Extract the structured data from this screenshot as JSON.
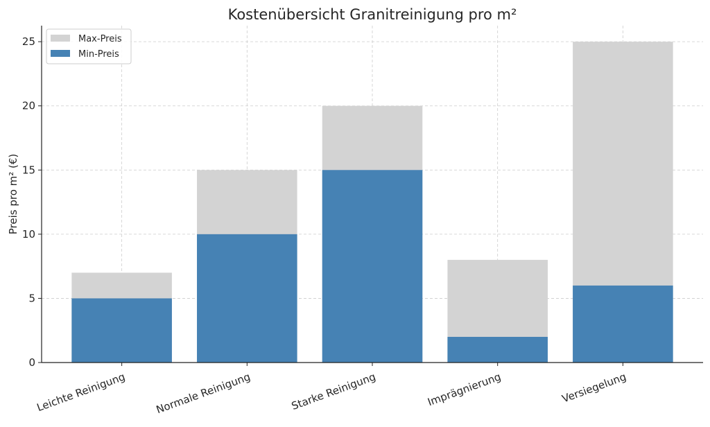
{
  "chart_data": {
    "type": "bar",
    "title": "Kostenübersicht Granitreinigung pro m²",
    "xlabel": "",
    "ylabel": "Preis pro m² (€)",
    "categories": [
      "Leichte Reinigung",
      "Normale Reinigung",
      "Starke Reinigung",
      "Imprägnierung",
      "Versiegelung"
    ],
    "series": [
      {
        "name": "Max-Preis",
        "values": [
          7,
          15,
          20,
          8,
          25
        ],
        "color": "#d3d3d3"
      },
      {
        "name": "Min-Preis",
        "values": [
          5,
          10,
          15,
          2,
          6
        ],
        "color": "#4682b4"
      }
    ],
    "ylim": [
      0,
      26.25
    ],
    "yticks": [
      0,
      5,
      10,
      15,
      20,
      25
    ],
    "grid": true,
    "legend": "top-left",
    "stacking": "overlay"
  }
}
